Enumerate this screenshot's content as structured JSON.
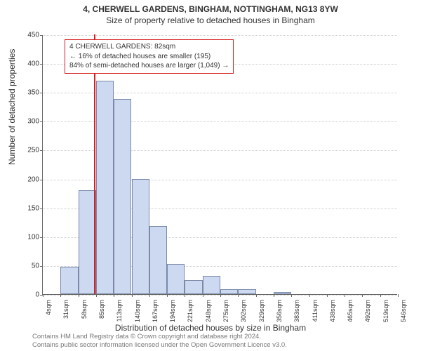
{
  "titles": {
    "line1": "4, CHERWELL GARDENS, BINGHAM, NOTTINGHAM, NG13 8YW",
    "line2": "Size of property relative to detached houses in Bingham"
  },
  "axes": {
    "ylabel": "Number of detached properties",
    "xlabel": "Distribution of detached houses by size in Bingham",
    "ylim": [
      0,
      450
    ],
    "ytick_step": 50,
    "label_fontsize": 12,
    "tick_fontsize": 10
  },
  "chart": {
    "type": "histogram",
    "bar_fill": "#ccd9f0",
    "bar_border": "#7a8aa8",
    "grid_color": "#cccccc",
    "axis_color": "#666666",
    "background_color": "#ffffff",
    "bin_width_sqm": 27,
    "bin_start_sqm": 4,
    "x_tick_labels": [
      "4sqm",
      "31sqm",
      "58sqm",
      "85sqm",
      "113sqm",
      "140sqm",
      "167sqm",
      "194sqm",
      "221sqm",
      "248sqm",
      "275sqm",
      "302sqm",
      "329sqm",
      "356sqm",
      "383sqm",
      "411sqm",
      "438sqm",
      "465sqm",
      "492sqm",
      "519sqm",
      "546sqm"
    ],
    "values": [
      0,
      48,
      180,
      370,
      338,
      200,
      118,
      52,
      24,
      32,
      8,
      8,
      0,
      4,
      0,
      0,
      0,
      0,
      0,
      0
    ],
    "marker": {
      "value_sqm": 82,
      "color": "#d62020",
      "line_width": 2
    }
  },
  "infobox": {
    "border_color": "#d62020",
    "lines": {
      "l1": "4 CHERWELL GARDENS: 82sqm",
      "l2": "← 16% of detached houses are smaller (195)",
      "l3": "84% of semi-detached houses are larger (1,049) →"
    }
  },
  "footer": {
    "l1": "Contains HM Land Registry data © Crown copyright and database right 2024.",
    "l2": "Contains public sector information licensed under the Open Government Licence v3.0."
  }
}
